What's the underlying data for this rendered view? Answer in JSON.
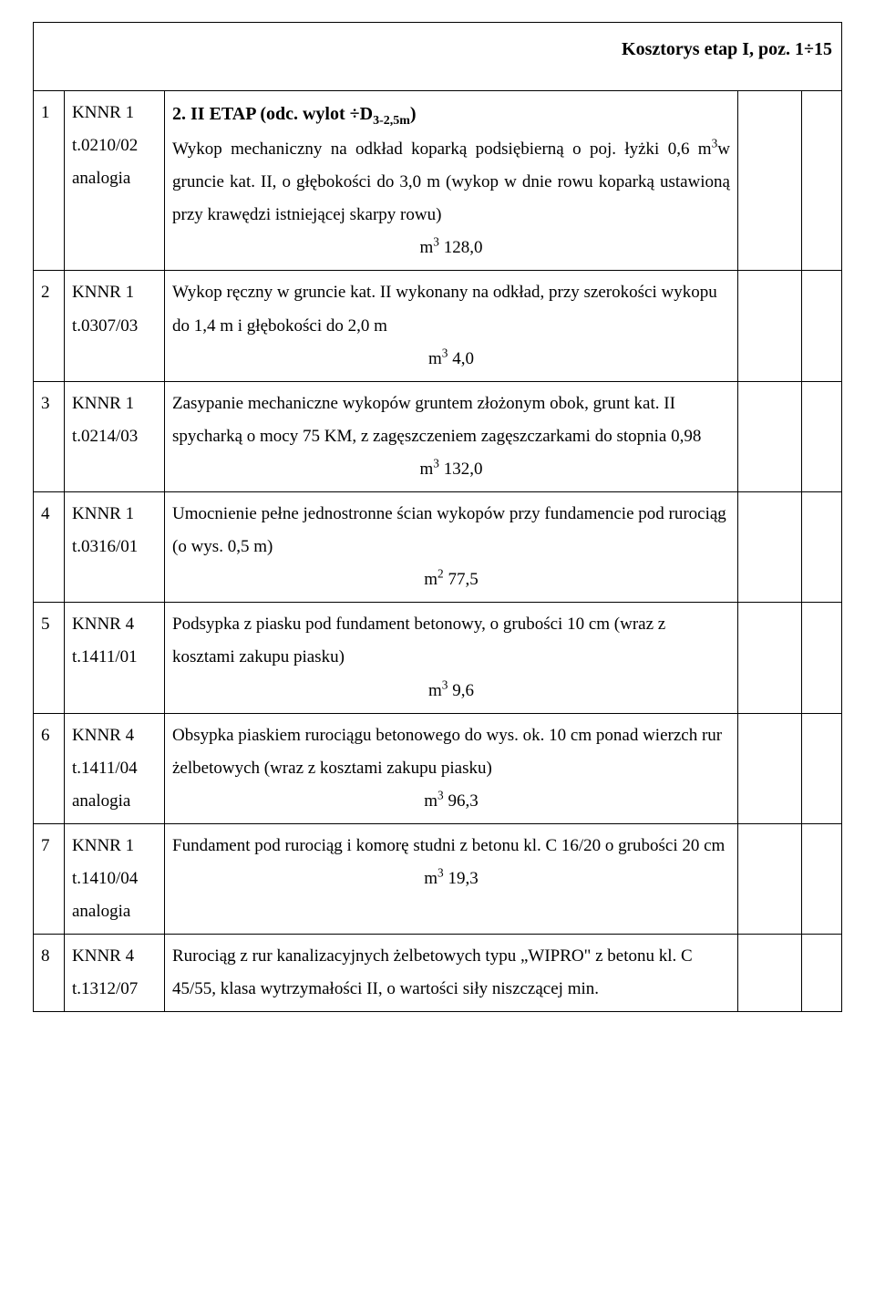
{
  "header": {
    "title": "Kosztorys etap I, poz. 1÷15"
  },
  "section": {
    "title_prefix": "2. II ETAP (odc. wylot ÷D",
    "title_sub": "3-2,5m",
    "title_suffix": ")"
  },
  "rows": [
    {
      "num": "1",
      "code1": "KNNR 1",
      "code2": "t.0210/02",
      "code3": "analogia",
      "desc_before": "Wykop mechaniczny na odkład koparką podsiębierną o poj. łyżki 0,6 m",
      "desc_sup1": "3",
      "desc_mid": "w gruncie kat. II, o głębokości do 3,0 m (wykop w dnie rowu koparką ustawioną przy krawędzi istniejącej skarpy rowu)",
      "qty_prefix": "m",
      "qty_sup": "3",
      "qty_val": " 128,0",
      "justify": true
    },
    {
      "num": "2",
      "code1": "KNNR 1",
      "code2": "t.0307/03",
      "code3": "",
      "desc_before": "Wykop ręczny w gruncie kat. II wykonany na odkład, przy szerokości wykopu do 1,4 m i głębokości do 2,0 m",
      "desc_sup1": "",
      "desc_mid": "",
      "qty_prefix": "m",
      "qty_sup": "3",
      "qty_val": " 4,0",
      "justify": false
    },
    {
      "num": "3",
      "code1": "KNNR 1",
      "code2": "t.0214/03",
      "code3": "",
      "desc_before": "Zasypanie mechaniczne wykopów gruntem złożonym obok, grunt kat. II spycharką o mocy 75 KM, z zagęszczeniem zagęszczarkami do stopnia 0,98",
      "desc_sup1": "",
      "desc_mid": "",
      "qty_prefix": "m",
      "qty_sup": "3",
      "qty_val": " 132,0",
      "justify": false
    },
    {
      "num": "4",
      "code1": "KNNR 1",
      "code2": "t.0316/01",
      "code3": "",
      "desc_before": "Umocnienie pełne jednostronne ścian wykopów przy fundamencie pod rurociąg (o wys. 0,5 m)",
      "desc_sup1": "",
      "desc_mid": "",
      "qty_prefix": "m",
      "qty_sup": "2",
      "qty_val": " 77,5",
      "justify": false
    },
    {
      "num": "5",
      "code1": "KNNR 4",
      "code2": "t.1411/01",
      "code3": "",
      "desc_before": "Podsypka z piasku pod fundament betonowy, o grubości 10 cm (wraz z kosztami zakupu piasku)",
      "desc_sup1": "",
      "desc_mid": "",
      "qty_prefix": "m",
      "qty_sup": "3",
      "qty_val": " 9,6",
      "justify": false
    },
    {
      "num": "6",
      "code1": "KNNR 4",
      "code2": "t.1411/04",
      "code3": "analogia",
      "desc_before": "Obsypka piaskiem rurociągu betonowego do wys. ok. 10 cm ponad wierzch rur żelbetowych (wraz z kosztami zakupu piasku)",
      "desc_sup1": "",
      "desc_mid": "",
      "qty_prefix": "m",
      "qty_sup": "3",
      "qty_val": " 96,3",
      "justify": false
    },
    {
      "num": "7",
      "code1": "KNNR 1",
      "code2": "t.1410/04",
      "code3": "analogia",
      "desc_before": "Fundament pod rurociąg i komorę studni z betonu kl. C 16/20 o grubości 20 cm",
      "desc_sup1": "",
      "desc_mid": "",
      "qty_prefix": "m",
      "qty_sup": "3",
      "qty_val": " 19,3",
      "justify": false
    },
    {
      "num": "8",
      "code1": "KNNR 4",
      "code2": "t.1312/07",
      "code3": "",
      "desc_before": "Rurociąg z rur kanalizacyjnych żelbetowych typu „WIPRO\" z betonu kl. C 45/55, klasa wytrzymałości II, o wartości siły niszczącej min.",
      "desc_sup1": "",
      "desc_mid": "",
      "qty_prefix": "",
      "qty_sup": "",
      "qty_val": "",
      "justify": false
    }
  ]
}
